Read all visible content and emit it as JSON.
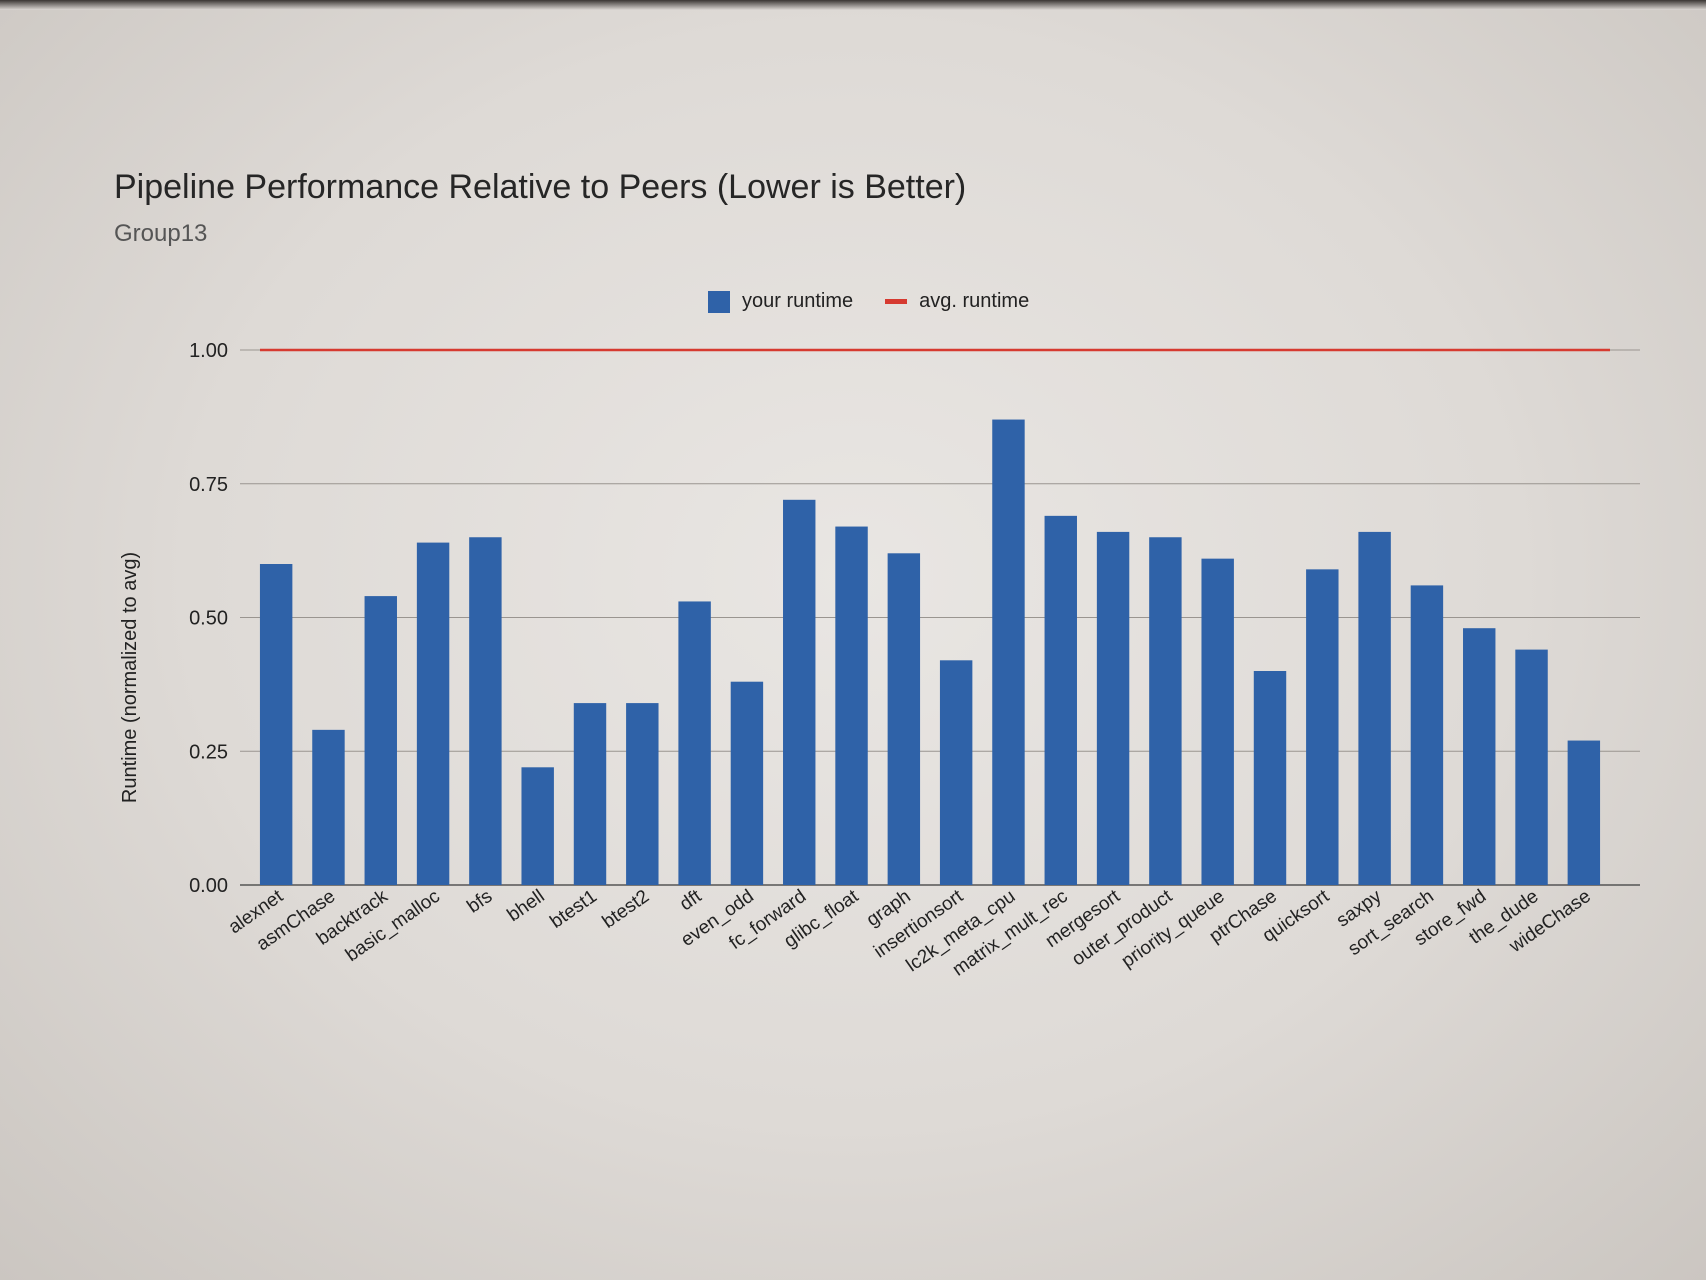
{
  "chart_data": {
    "type": "bar",
    "title": "Pipeline Performance Relative to Peers (Lower is Better)",
    "subtitle": "Group13",
    "ylabel": "Runtime (normalized to avg)",
    "xlabel": "",
    "ylim": [
      0,
      1.0
    ],
    "yticks": [
      "0.00",
      "0.25",
      "0.50",
      "0.75",
      "1.00"
    ],
    "grid": true,
    "legend_position": "top-center",
    "legend": {
      "bar_label": "your runtime",
      "line_label": "avg. runtime"
    },
    "colors": {
      "bar": "#2f62a8",
      "line": "#d63a30",
      "grid": "#9a9590"
    },
    "categories": [
      "alexnet",
      "asmChase",
      "backtrack",
      "basic_malloc",
      "bfs",
      "bhell",
      "btest1",
      "btest2",
      "dft",
      "even_odd",
      "fc_forward",
      "glibc_float",
      "graph",
      "insertionsort",
      "lc2k_meta_cpu",
      "matrix_mult_rec",
      "mergesort",
      "outer_product",
      "priority_queue",
      "ptrChase",
      "quicksort",
      "saxpy",
      "sort_search",
      "store_fwd",
      "the_dude",
      "wideChase"
    ],
    "series": [
      {
        "name": "your runtime",
        "type": "bar",
        "values": [
          0.6,
          0.29,
          0.54,
          0.64,
          0.65,
          0.22,
          0.34,
          0.34,
          0.53,
          0.38,
          0.72,
          0.67,
          0.62,
          0.42,
          0.87,
          0.69,
          0.66,
          0.65,
          0.61,
          0.4,
          0.59,
          0.66,
          0.56,
          0.48,
          0.44,
          0.27
        ]
      },
      {
        "name": "avg. runtime",
        "type": "line",
        "values": [
          1,
          1,
          1,
          1,
          1,
          1,
          1,
          1,
          1,
          1,
          1,
          1,
          1,
          1,
          1,
          1,
          1,
          1,
          1,
          1,
          1,
          1,
          1,
          1,
          1,
          1
        ]
      }
    ]
  }
}
